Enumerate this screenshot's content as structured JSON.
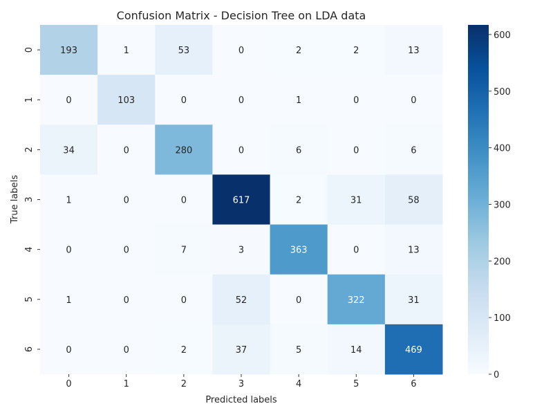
{
  "chart_data": {
    "type": "heatmap",
    "title": "Confusion Matrix - Decision Tree on LDA data",
    "xlabel": "Predicted labels",
    "ylabel": "True labels",
    "x_categories": [
      "0",
      "1",
      "2",
      "3",
      "4",
      "5",
      "6"
    ],
    "y_categories": [
      "0",
      "1",
      "2",
      "3",
      "4",
      "5",
      "6"
    ],
    "values": [
      [
        193,
        1,
        53,
        0,
        2,
        2,
        13
      ],
      [
        0,
        103,
        0,
        0,
        1,
        0,
        0
      ],
      [
        34,
        0,
        280,
        0,
        6,
        0,
        6
      ],
      [
        1,
        0,
        0,
        617,
        2,
        31,
        58
      ],
      [
        0,
        0,
        7,
        3,
        363,
        0,
        13
      ],
      [
        1,
        0,
        0,
        52,
        0,
        322,
        31
      ],
      [
        0,
        0,
        2,
        37,
        5,
        14,
        469
      ]
    ],
    "colormap": "Blues",
    "colorbar": {
      "range": [
        0,
        617
      ],
      "ticks": [
        0,
        100,
        200,
        300,
        400,
        500,
        600
      ]
    },
    "grid": false
  }
}
